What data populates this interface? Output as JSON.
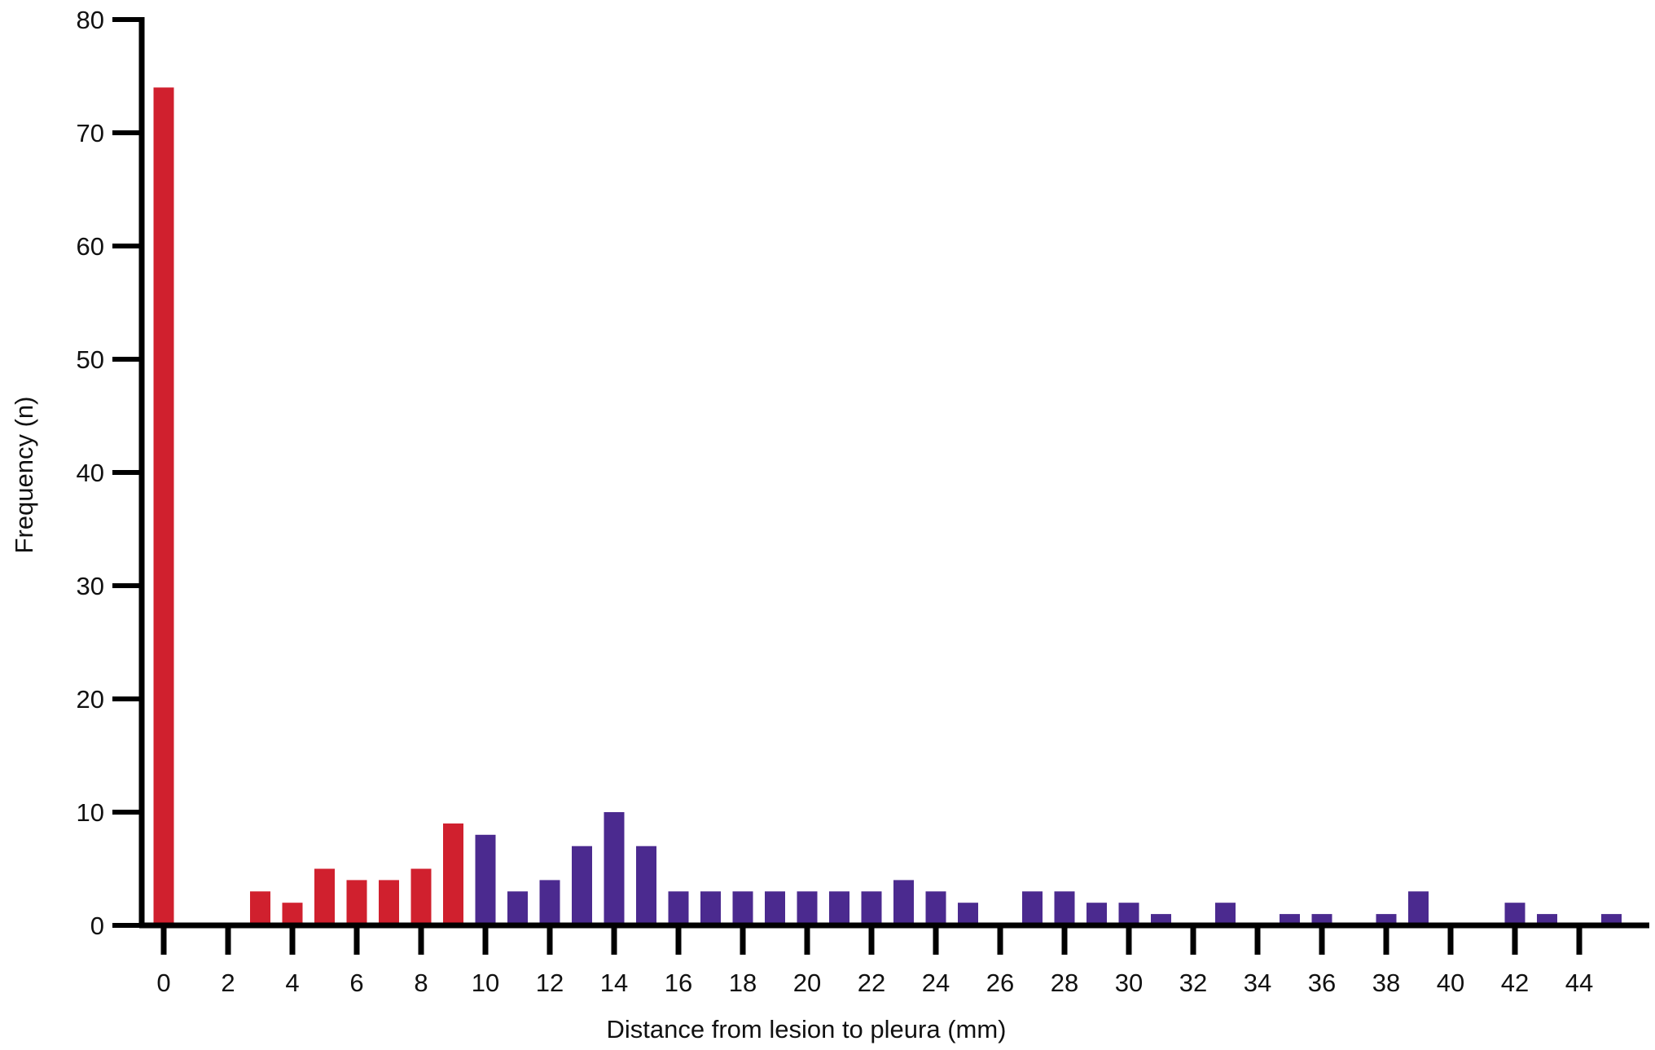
{
  "chart_data": {
    "type": "bar",
    "title": "",
    "xlabel": "Distance from lesion to pleura (mm)",
    "ylabel": "Frequency (n)",
    "xlim": [
      -0.5,
      45.5
    ],
    "ylim": [
      0,
      80
    ],
    "x_ticks": [
      0,
      2,
      4,
      6,
      8,
      10,
      12,
      14,
      16,
      18,
      20,
      22,
      24,
      26,
      28,
      30,
      32,
      34,
      36,
      38,
      40,
      42,
      44
    ],
    "y_ticks": [
      0,
      10,
      20,
      30,
      40,
      50,
      60,
      70,
      80
    ],
    "grid": false,
    "legend": "none",
    "colors": {
      "near": "#d0202e",
      "far": "#4b2a8f",
      "axis": "#000000"
    },
    "color_split_at": 10,
    "x": [
      0,
      1,
      2,
      3,
      4,
      5,
      6,
      7,
      8,
      9,
      10,
      11,
      12,
      13,
      14,
      15,
      16,
      17,
      18,
      19,
      20,
      21,
      22,
      23,
      24,
      25,
      26,
      27,
      28,
      29,
      30,
      31,
      32,
      33,
      34,
      35,
      36,
      37,
      38,
      39,
      40,
      41,
      42,
      43,
      44,
      45
    ],
    "values": [
      74,
      0,
      0,
      3,
      2,
      5,
      4,
      4,
      5,
      9,
      8,
      3,
      4,
      7,
      10,
      7,
      3,
      3,
      3,
      3,
      3,
      3,
      3,
      4,
      3,
      2,
      0,
      3,
      3,
      2,
      2,
      1,
      0,
      2,
      0,
      1,
      1,
      0,
      1,
      3,
      0,
      0,
      2,
      1,
      0,
      1
    ]
  }
}
